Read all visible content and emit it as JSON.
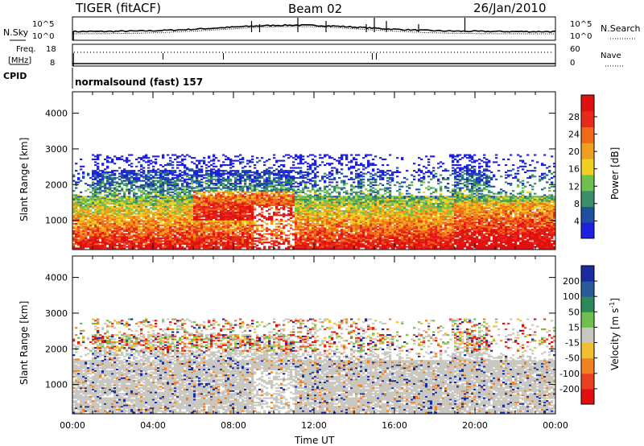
{
  "header": {
    "radar": "TIGER (fitACF)",
    "beam": "Beam 02",
    "date": "26/Jan/2010"
  },
  "panels": {
    "nsky_label": "N.Sky",
    "nsearch_label": "N.Search",
    "nsky_ticks": [
      "10^5",
      "10^0"
    ],
    "nsearch_ticks": [
      "10^5",
      "10^0"
    ],
    "freq_label_1": "Freq.",
    "freq_label_2": "[MHz]",
    "freq_ticks": [
      "18",
      "8"
    ],
    "nave_label": "Nave",
    "nave_ticks": [
      "60",
      "0"
    ],
    "cpid_label": "CPID",
    "cpid_text": "normalsound (fast) 157"
  },
  "chart_data": [
    {
      "type": "heatmap",
      "name": "power",
      "ylabel": "Slant Range [km]",
      "xlabel": "Time UT",
      "xticks": [
        "00:00",
        "04:00",
        "08:00",
        "12:00",
        "16:00",
        "20:00",
        "00:00"
      ],
      "yticks": [
        "1000",
        "2000",
        "3000",
        "4000"
      ],
      "ylim": [
        180,
        4600
      ],
      "xlim_hours": [
        0,
        24
      ],
      "colorbar_label": "Power [dB]",
      "colorbar_ticks": [
        "4",
        "8",
        "12",
        "16",
        "20",
        "24",
        "28"
      ],
      "colors": [
        "#1f1fe0",
        "#1f4fa0",
        "#3a8f6a",
        "#70c050",
        "#f0d020",
        "#f0a020",
        "#f06a1a",
        "#e82a1a",
        "#e01010"
      ]
    },
    {
      "type": "heatmap",
      "name": "velocity",
      "ylabel": "Slant Range [km]",
      "xlabel": "Time UT",
      "xticks": [
        "00:00",
        "04:00",
        "08:00",
        "12:00",
        "16:00",
        "20:00",
        "00:00"
      ],
      "yticks": [
        "1000",
        "2000",
        "3000",
        "4000"
      ],
      "ylim": [
        180,
        4600
      ],
      "xlim_hours": [
        0,
        24
      ],
      "colorbar_label": "Velocity [m s^-1]",
      "colorbar_ticks": [
        "200",
        "100",
        "50",
        "15",
        "-15",
        "-50",
        "-100",
        "-200"
      ],
      "colors": [
        "#1a2aa0",
        "#2a5a9a",
        "#2a8a5a",
        "#70c050",
        "#c8c8c0",
        "#f0c030",
        "#f08020",
        "#e84020",
        "#e01010"
      ]
    }
  ]
}
